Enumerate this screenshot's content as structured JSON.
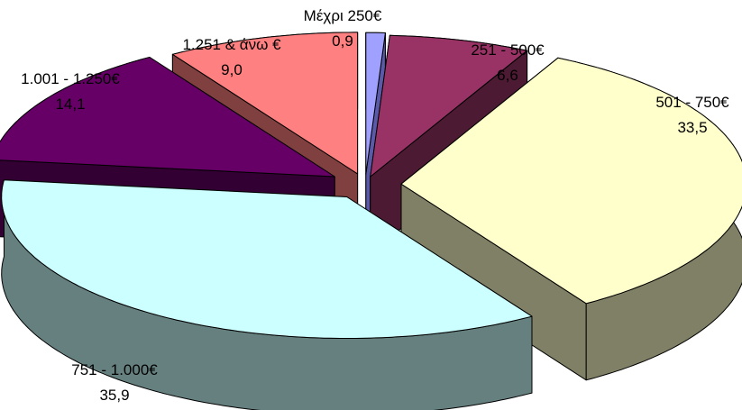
{
  "chart_data": {
    "type": "pie",
    "style": "3d-exploded",
    "legend": "none",
    "slices": [
      {
        "label": "Μέχρι 250€",
        "value_text": "0,9",
        "value": 0.9,
        "top_color": "#a0a0ff",
        "side_color": "#5a5aa8"
      },
      {
        "label": "251 - 500€",
        "value_text": "6,6",
        "value": 6.6,
        "top_color": "#993366",
        "side_color": "#4d1a33"
      },
      {
        "label": "501 - 750€",
        "value_text": "33,5",
        "value": 33.5,
        "top_color": "#ffffcc",
        "side_color": "#808066"
      },
      {
        "label": "751 - 1.000€",
        "value_text": "35,9",
        "value": 35.9,
        "top_color": "#ccffff",
        "side_color": "#668080"
      },
      {
        "label": "1.001 - 1.250€",
        "value_text": "14,1",
        "value": 14.1,
        "top_color": "#660066",
        "side_color": "#330033"
      },
      {
        "label": "1.251 & άνω €",
        "value_text": "9,0",
        "value": 9.0,
        "top_color": "#ff8080",
        "side_color": "#804040"
      }
    ]
  }
}
